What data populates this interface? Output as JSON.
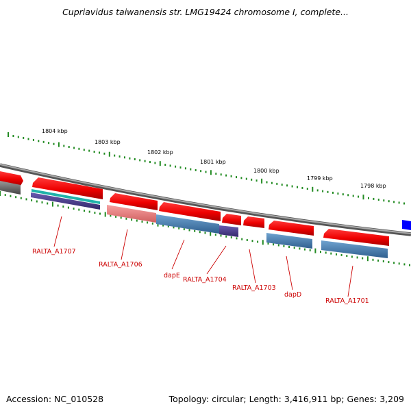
{
  "title": "Cupriavidus taiwanensis str. LMG19424 chromosome I, complete...",
  "footer": {
    "accession": "Accession: NC_010528",
    "topology": "Topology: circular; Length: 3,416,911 bp; Genes: 3,209"
  },
  "scale_labels": [
    "1804 kbp",
    "1803 kbp",
    "1802 kbp",
    "1801 kbp",
    "1800 kbp",
    "1799 kbp",
    "1798 kbp"
  ],
  "gene_labels": [
    "RALTA_A1707",
    "RALTA_A1706",
    "dapE",
    "RALTA_A1704",
    "RALTA_A1703",
    "dapD",
    "RALTA_A1701"
  ],
  "colors": {
    "gene_red": "#ff0000",
    "feature_blue": "#4682b4",
    "feature_purple": "#4b3b8f",
    "feature_cyan": "#20b2aa",
    "feature_pink": "#f08080",
    "backbone_gray": "#888888",
    "tick_green": "#228b22",
    "label_red": "#cc0000",
    "edge_blue": "#0000ff"
  }
}
